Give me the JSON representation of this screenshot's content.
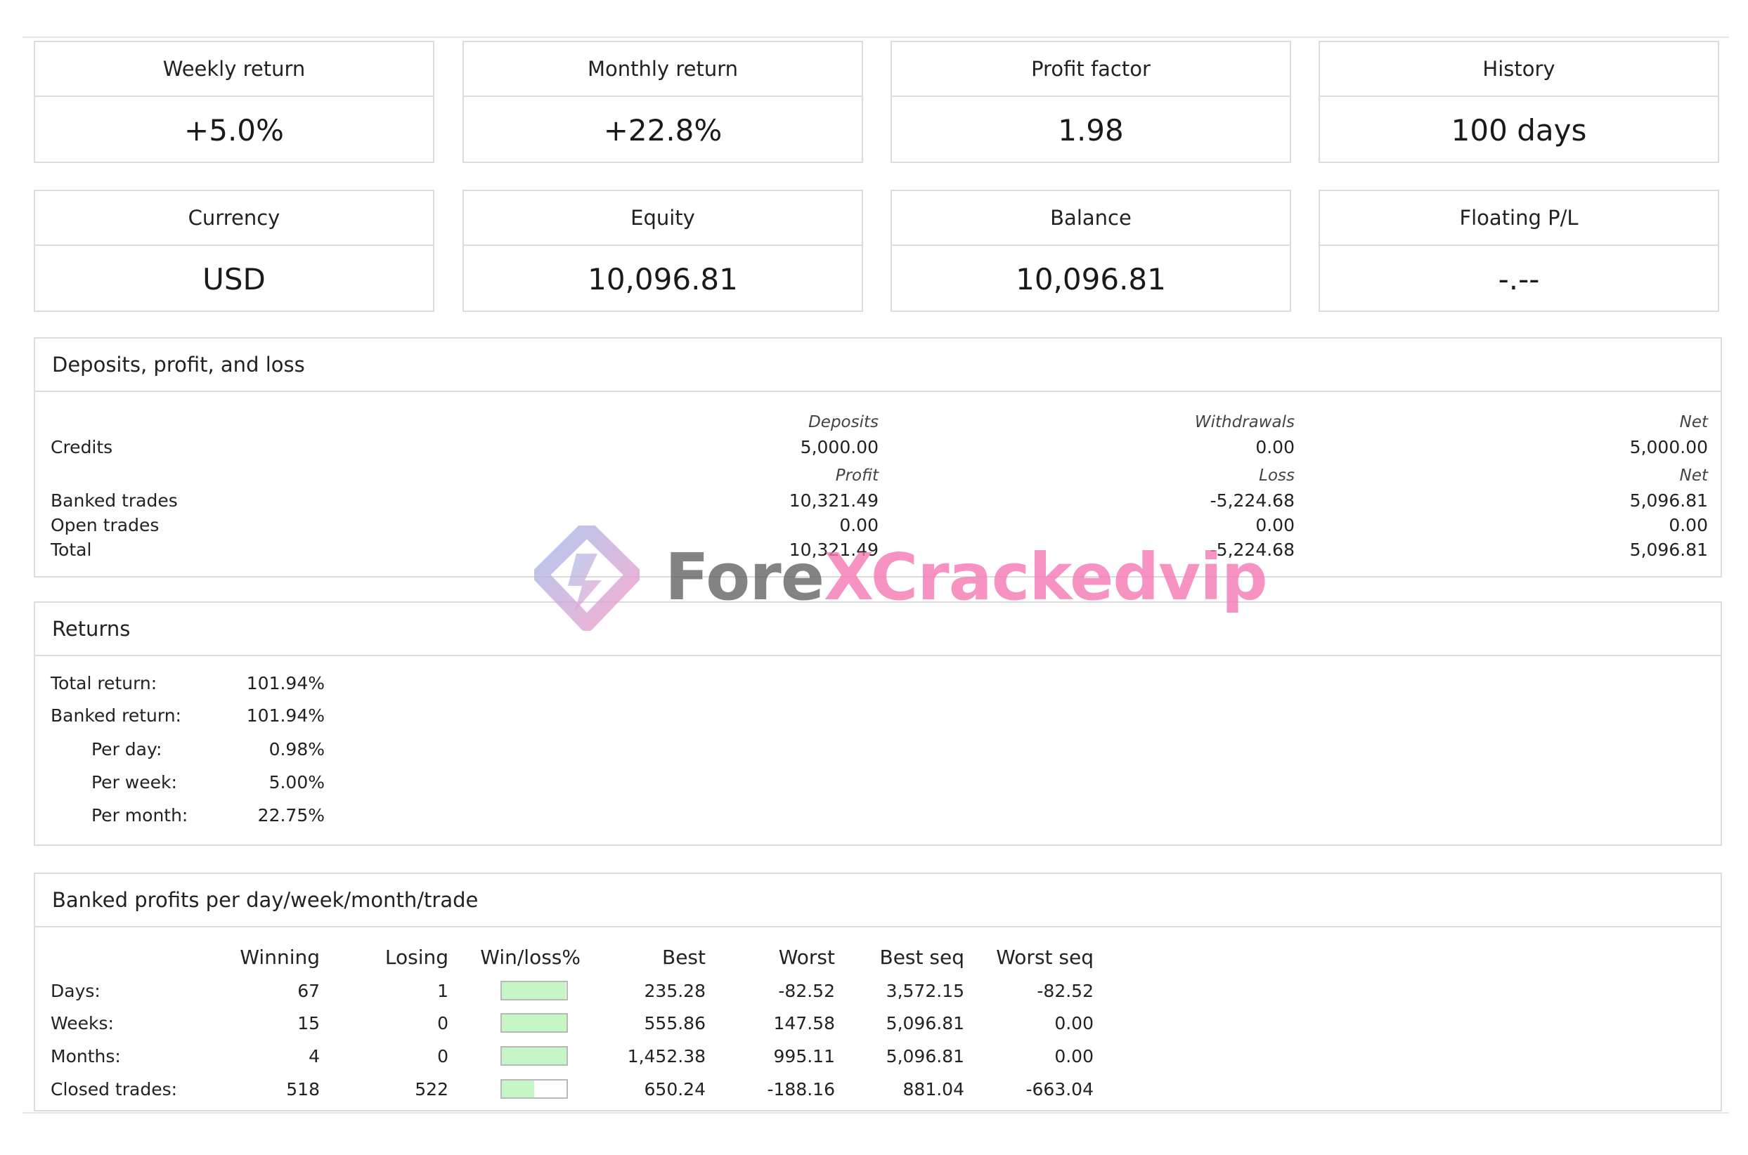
{
  "stats_row1": [
    {
      "label": "Weekly return",
      "value": "+5.0%"
    },
    {
      "label": "Monthly return",
      "value": "+22.8%"
    },
    {
      "label": "Profit factor",
      "value": "1.98"
    },
    {
      "label": "History",
      "value": "100 days"
    }
  ],
  "stats_row2": [
    {
      "label": "Currency",
      "value": "USD"
    },
    {
      "label": "Equity",
      "value": "10,096.81"
    },
    {
      "label": "Balance",
      "value": "10,096.81"
    },
    {
      "label": "Floating P/L",
      "value": "-.--"
    }
  ],
  "deposits": {
    "title": "Deposits, profit, and loss",
    "headers1": {
      "c1": "Deposits",
      "c2": "Withdrawals",
      "c3": "Net"
    },
    "credits": {
      "label": "Credits",
      "c1": "5,000.00",
      "c2": "0.00",
      "c3": "5,000.00"
    },
    "headers2": {
      "c1": "Profit",
      "c2": "Loss",
      "c3": "Net"
    },
    "banked": {
      "label": "Banked trades",
      "c1": "10,321.49",
      "c2": "-5,224.68",
      "c3": "5,096.81"
    },
    "open": {
      "label": "Open trades",
      "c1": "0.00",
      "c2": "0.00",
      "c3": "0.00"
    },
    "total": {
      "label": "Total",
      "c1": "10,321.49",
      "c2": "-5,224.68",
      "c3": "5,096.81"
    }
  },
  "returns": {
    "title": "Returns",
    "rows": [
      {
        "label": "Total return:",
        "value": "101.94%"
      },
      {
        "label": "Banked return:",
        "value": "101.94%"
      },
      {
        "label": "Per day:",
        "value": "0.98%"
      },
      {
        "label": "Per week:",
        "value": "5.00%"
      },
      {
        "label": "Per month:",
        "value": "22.75%"
      }
    ]
  },
  "banked_profits": {
    "title": "Banked profits per day/week/month/trade",
    "headers": {
      "winning": "Winning",
      "losing": "Losing",
      "winloss": "Win/loss%",
      "best": "Best",
      "worst": "Worst",
      "best_seq": "Best seq",
      "worst_seq": "Worst seq"
    },
    "rows": [
      {
        "name": "Days:",
        "winning": "67",
        "losing": "1",
        "win_fraction": 0.985,
        "best": "235.28",
        "worst": "-82.52",
        "best_seq": "3,572.15",
        "worst_seq": "-82.52"
      },
      {
        "name": "Weeks:",
        "winning": "15",
        "losing": "0",
        "win_fraction": 1.0,
        "best": "555.86",
        "worst": "147.58",
        "best_seq": "5,096.81",
        "worst_seq": "0.00"
      },
      {
        "name": "Months:",
        "winning": "4",
        "losing": "0",
        "win_fraction": 1.0,
        "best": "1,452.38",
        "worst": "995.11",
        "best_seq": "5,096.81",
        "worst_seq": "0.00"
      },
      {
        "name": "Closed trades:",
        "winning": "518",
        "losing": "522",
        "win_fraction": 0.498,
        "best": "650.24",
        "worst": "-188.16",
        "best_seq": "881.04",
        "worst_seq": "-663.04"
      }
    ],
    "colors": {
      "win": "#c6f5c6",
      "loss": "#f7c0bd"
    }
  },
  "watermark": {
    "text_part1": "Fore",
    "text_part2": "XCracked",
    "text_part3": "vip"
  }
}
